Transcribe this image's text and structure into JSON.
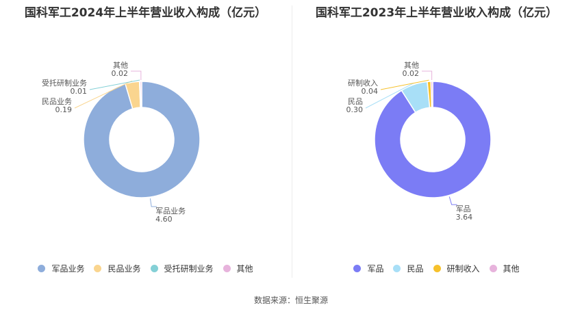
{
  "chart_data": [
    {
      "type": "pie",
      "title": "国科军工2024年上半年营业收入构成（亿元）",
      "slices": [
        {
          "label": "军品业务",
          "value": 4.6,
          "display": "4.60",
          "color": "#8eaddb",
          "icon": "circle"
        },
        {
          "label": "民品业务",
          "value": 0.19,
          "display": "0.19",
          "color": "#fad58f",
          "icon": "circle"
        },
        {
          "label": "受托研制业务",
          "value": 0.01,
          "display": "0.01",
          "color": "#84d0d6",
          "icon": "circle"
        },
        {
          "label": "其他",
          "value": 0.02,
          "display": "0.02",
          "color": "#e7b3dc",
          "icon": "circle"
        }
      ]
    },
    {
      "type": "pie",
      "title": "国科军工2023年上半年营业收入构成（亿元）",
      "slices": [
        {
          "label": "军品",
          "value": 3.64,
          "display": "3.64",
          "color": "#7b7cf5",
          "icon": "circle"
        },
        {
          "label": "民品",
          "value": 0.3,
          "display": "0.30",
          "color": "#a8dff7",
          "icon": "circle"
        },
        {
          "label": "研制收入",
          "value": 0.04,
          "display": "0.04",
          "color": "#f6c12c",
          "icon": "circle"
        },
        {
          "label": "其他",
          "value": 0.02,
          "display": "0.02",
          "color": "#e7b3dc",
          "icon": "circle"
        }
      ]
    }
  ],
  "footer": {
    "source": "数据来源：恒生聚源"
  }
}
